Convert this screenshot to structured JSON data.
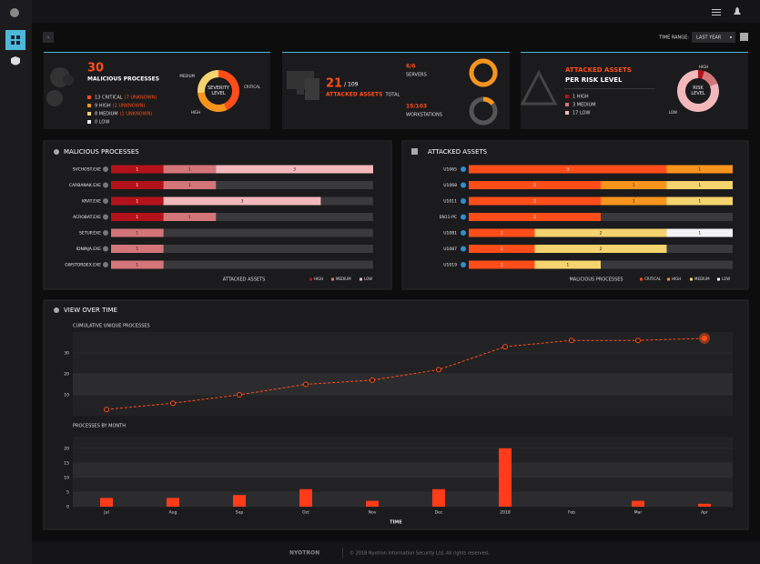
{
  "header": {
    "time_range_label": "TIME RANGE:",
    "time_range": "LAST YEAR"
  },
  "processes_card": {
    "count": 30,
    "title": "MALICIOUS PROCESSES",
    "items": [
      {
        "text": "13 CRITICAL",
        "note": "(7 UNKNOWN)",
        "color": "#ff4d1a"
      },
      {
        "text": "9 HIGH",
        "note": "(2 UNKNOWN)",
        "color": "#f7941d"
      },
      {
        "text": "8 MEDIUM",
        "note": "(1 UNKNOWN)",
        "color": "#f5d36e"
      },
      {
        "text": "0 LOW",
        "color": "#f2f2f2"
      }
    ],
    "donut": {
      "label": "SEVERITY LEVEL",
      "segments": [
        {
          "name": "CRITICAL",
          "value": 13,
          "color": "#ff4d1a"
        },
        {
          "name": "HIGH",
          "value": 9,
          "color": "#f7941d"
        },
        {
          "name": "MEDIUM",
          "value": 8,
          "color": "#f5d36e"
        }
      ]
    }
  },
  "assets_card": {
    "count": 21,
    "total": "/ 109",
    "title": "ATTACKED ASSETS",
    "total_label": "TOTAL",
    "servers": {
      "count": "6/6",
      "label": "SERVERS",
      "attacked": 6,
      "total": 6
    },
    "workstations": {
      "count": "15/103",
      "label": "WORKSTATIONS",
      "attacked": 15,
      "total": 103
    }
  },
  "risk_card": {
    "title": "ATTACKED ASSETS",
    "subtitle": "PER RISK LEVEL",
    "donut_label": "RISK LEVEL",
    "segments": [
      {
        "name": "HIGH",
        "label": "1 HIGH",
        "value": 1,
        "color": "#b3121a"
      },
      {
        "name": "MEDIUM",
        "label": "3 MEDIUM",
        "value": 3,
        "color": "#d4757a"
      },
      {
        "name": "LOW",
        "label": "17 LOW",
        "value": 17,
        "color": "#f2b8bb"
      }
    ]
  },
  "malicious_processes": {
    "title": "MALICIOUS PROCESSES",
    "x_label": "ATTACKED ASSETS",
    "xlim": [
      0,
      5
    ],
    "categories": [
      "SVCHOST.EXE",
      "CARBANAK.EXE",
      "KRAT.EXE",
      "ACROBAT.EXE",
      "SETUP.EXE",
      "IDNINJA.EXE",
      "GWSTORDEX.EXE"
    ],
    "series": [
      {
        "name": "HIGH",
        "color": "#b3121a",
        "values": [
          1,
          1,
          1,
          1,
          0,
          0,
          0
        ]
      },
      {
        "name": "MEDIUM",
        "color": "#d4757a",
        "values": [
          1,
          1,
          0,
          1,
          1,
          1,
          1
        ]
      },
      {
        "name": "LOW",
        "color": "#f2b8bb",
        "values": [
          3,
          0,
          3,
          0,
          0,
          0,
          0
        ]
      }
    ]
  },
  "attacked_assets": {
    "title": "ATTACKED ASSETS",
    "x_label": "MALICIOUS PROCESSES",
    "xlim": [
      0,
      4
    ],
    "categories": [
      "U1065",
      "U1068",
      "U1011",
      "EN11-PC",
      "U1081",
      "U1087",
      "U1019"
    ],
    "series": [
      {
        "name": "CRITICAL",
        "color": "#ff4d1a",
        "values": [
          3,
          2,
          2,
          2,
          1,
          1,
          1
        ]
      },
      {
        "name": "HIGH",
        "color": "#f7941d",
        "values": [
          1,
          1,
          1,
          0,
          0,
          0,
          0
        ]
      },
      {
        "name": "MEDIUM",
        "color": "#f5d36e",
        "values": [
          0,
          1,
          1,
          0,
          2,
          2,
          1
        ]
      },
      {
        "name": "LOW",
        "color": "#f2f2f2",
        "values": [
          0,
          0,
          0,
          0,
          1,
          0,
          0
        ]
      }
    ]
  },
  "view_over_time": {
    "title": "VIEW OVER TIME",
    "x_label": "TIME",
    "categories": [
      "Jul",
      "Aug",
      "Sep",
      "Oct",
      "Nov",
      "Dec",
      "2018",
      "Feb",
      "Mar",
      "Apr"
    ],
    "cumulative": {
      "type": "line",
      "title": "CUMULATIVE UNIQUE PROCESSES",
      "color": "#ff4d1a",
      "values": [
        3,
        6,
        10,
        15,
        17,
        22,
        33,
        36,
        36,
        37
      ],
      "ylim": [
        0,
        40
      ],
      "yticks": [
        10,
        20,
        30
      ]
    },
    "monthly": {
      "type": "bar",
      "title": "PROCESSES BY MONTH",
      "color": "#ff3b1a",
      "values": [
        3,
        3,
        4,
        6,
        2,
        6,
        20,
        0,
        2,
        1
      ],
      "ylim": [
        0,
        24
      ],
      "yticks": [
        0,
        5,
        10,
        15,
        20
      ]
    }
  },
  "footer": {
    "brand": "NYOTRON",
    "copyright": "© 2018 Nyotron Information Security Ltd. All rights reserved."
  }
}
